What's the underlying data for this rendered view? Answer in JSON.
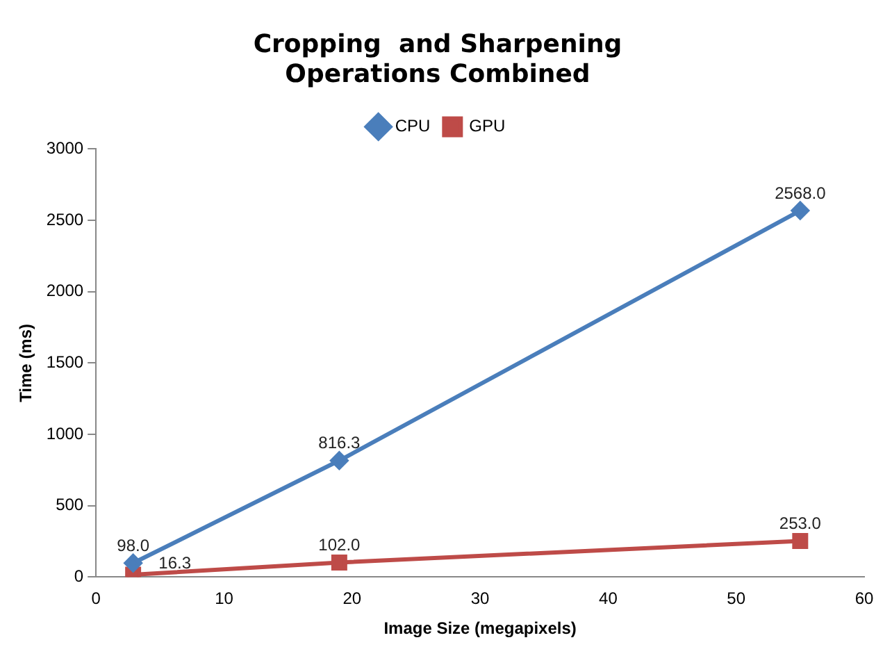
{
  "chart_data": {
    "type": "line",
    "title": "Cropping  and Sharpening\nOperations Combined",
    "xlabel": "Image Size (megapixels)",
    "ylabel": "Time (ms)",
    "x": [
      2.9,
      19,
      55
    ],
    "series": [
      {
        "name": "CPU",
        "color": "#4a7ebb",
        "marker": "diamond",
        "values": [
          98.0,
          816.3,
          2568.0
        ],
        "value_labels": [
          "98.0",
          "816.3",
          "2568.0"
        ]
      },
      {
        "name": "GPU",
        "color": "#be4b48",
        "marker": "square",
        "values": [
          16.3,
          102.0,
          253.0
        ],
        "value_labels": [
          "16.3",
          "102.0",
          "253.0"
        ]
      }
    ],
    "xlim": [
      0,
      60
    ],
    "xticks": [
      0,
      10,
      20,
      30,
      40,
      50,
      60
    ],
    "ylim": [
      0,
      3000
    ],
    "yticks": [
      0,
      500,
      1000,
      1500,
      2000,
      2500,
      3000
    ],
    "grid": false,
    "legend": "top",
    "line_style": "solid"
  }
}
